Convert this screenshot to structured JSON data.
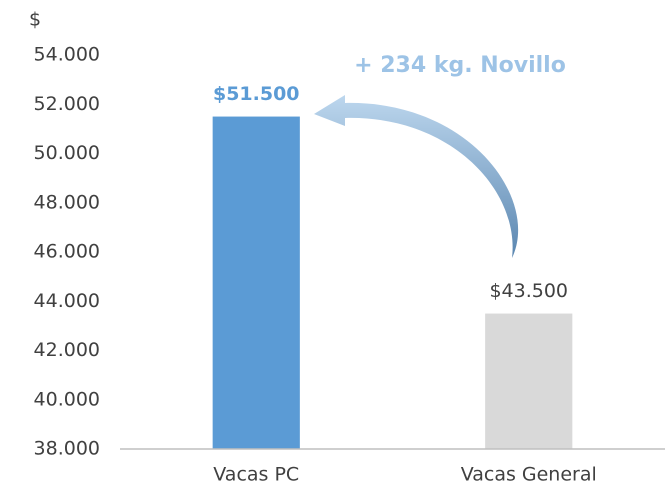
{
  "chart_data": {
    "type": "bar",
    "y_label": "$",
    "annotation": "+ 234 kg. Novillo",
    "categories": [
      "Vacas PC",
      "Vacas General"
    ],
    "values": [
      51500,
      43500
    ],
    "value_labels": [
      "$51.500",
      "$43.500"
    ],
    "colors": [
      "#5b9bd5",
      "#d9d9d9"
    ],
    "ylim": [
      38000,
      54000
    ],
    "yticks": [
      {
        "value": 38000,
        "label": "38.000"
      },
      {
        "value": 40000,
        "label": "40.000"
      },
      {
        "value": 42000,
        "label": "42.000"
      },
      {
        "value": 44000,
        "label": "44.000"
      },
      {
        "value": 46000,
        "label": "46.000"
      },
      {
        "value": 48000,
        "label": "48.000"
      },
      {
        "value": 50000,
        "label": "50.000"
      },
      {
        "value": 52000,
        "label": "52.000"
      },
      {
        "value": 54000,
        "label": "54.000"
      }
    ],
    "grid": false
  }
}
